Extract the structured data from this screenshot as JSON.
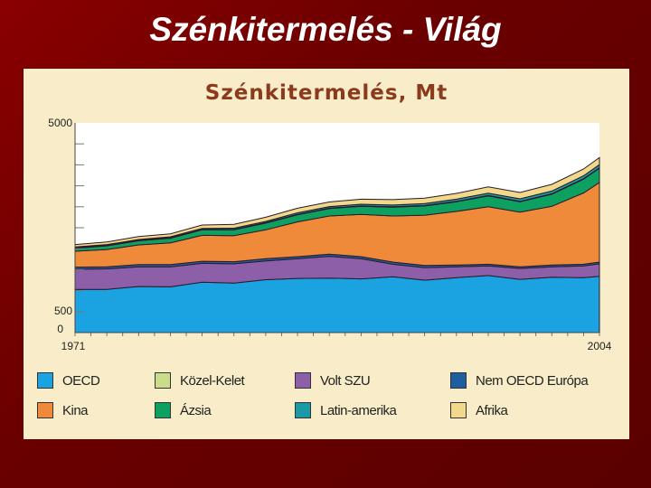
{
  "slide": {
    "title": "Szénkitermelés - Világ"
  },
  "chart_data": {
    "type": "area",
    "title": "Szénkitermelés, Mt",
    "stacked": true,
    "x_start_label": "1971",
    "x_end_label": "2004",
    "y_tick_labels": [
      "5000",
      "500",
      "0"
    ],
    "ylim": [
      0,
      5000
    ],
    "x": [
      1971,
      1973,
      1975,
      1977,
      1979,
      1981,
      1983,
      1985,
      1987,
      1989,
      1991,
      1993,
      1995,
      1997,
      1999,
      2001,
      2003,
      2004
    ],
    "series": [
      {
        "name": "OECD",
        "color": "#1aa3e0",
        "values": [
          1030,
          1030,
          1100,
          1090,
          1200,
          1180,
          1260,
          1290,
          1300,
          1280,
          1330,
          1250,
          1310,
          1360,
          1270,
          1320,
          1310,
          1340
        ]
      },
      {
        "name": "Volt SZU",
        "color": "#8c5fa8",
        "values": [
          480,
          490,
          470,
          480,
          450,
          460,
          450,
          470,
          520,
          480,
          300,
          300,
          260,
          230,
          260,
          250,
          280,
          300
        ]
      },
      {
        "name": "Nem OECD Európa",
        "color": "#1f5fa0",
        "values": [
          50,
          50,
          50,
          50,
          50,
          50,
          50,
          50,
          50,
          50,
          50,
          50,
          40,
          40,
          40,
          40,
          40,
          40
        ]
      },
      {
        "name": "Kína",
        "color": "#ef8a3a",
        "values": [
          380,
          410,
          470,
          520,
          620,
          620,
          690,
          830,
          910,
          1010,
          1100,
          1200,
          1280,
          1370,
          1300,
          1400,
          1700,
          1900
        ]
      },
      {
        "name": "Ázsia",
        "color": "#0ea060",
        "values": [
          70,
          90,
          100,
          110,
          130,
          140,
          160,
          170,
          180,
          190,
          210,
          220,
          230,
          260,
          250,
          290,
          330,
          340
        ]
      },
      {
        "name": "Közel-Kelet",
        "color": "#c9dd8a",
        "values": [
          10,
          10,
          10,
          10,
          10,
          10,
          10,
          10,
          10,
          10,
          10,
          10,
          10,
          10,
          10,
          10,
          10,
          10
        ]
      },
      {
        "name": "Latin-amerika",
        "color": "#1a9aa8",
        "values": [
          20,
          20,
          20,
          25,
          25,
          30,
          30,
          35,
          35,
          40,
          40,
          45,
          50,
          55,
          60,
          65,
          70,
          75
        ]
      },
      {
        "name": "Afrika",
        "color": "#f2d88a",
        "values": [
          60,
          60,
          70,
          70,
          80,
          90,
          100,
          110,
          110,
          120,
          130,
          130,
          140,
          150,
          150,
          160,
          160,
          170
        ]
      }
    ],
    "legend": [
      {
        "label": "OECD",
        "color": "#1aa3e0"
      },
      {
        "label": "Közel-Kelet",
        "color": "#c9dd8a"
      },
      {
        "label": "Volt SZU",
        "color": "#8c5fa8"
      },
      {
        "label": "Nem OECD Európa",
        "color": "#1f5fa0"
      },
      {
        "label": "Kina",
        "color": "#ef8a3a"
      },
      {
        "label": "Ázsia",
        "color": "#0ea060"
      },
      {
        "label": "Latin-amerika",
        "color": "#1a9aa8"
      },
      {
        "label": "Afrika",
        "color": "#f2d88a"
      }
    ]
  }
}
